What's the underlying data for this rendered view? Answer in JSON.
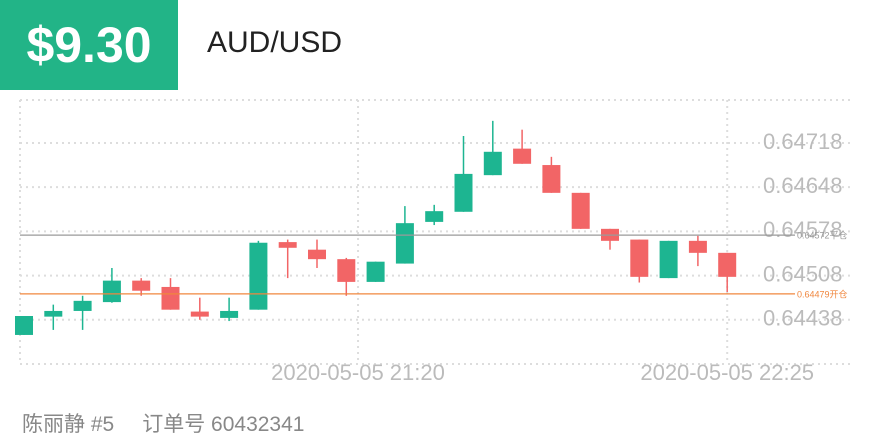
{
  "header": {
    "price": "$9.30",
    "symbol": "AUD/USD"
  },
  "chart_data": {
    "type": "candlestick",
    "open": [
      0.64414,
      0.64443,
      0.64452,
      0.64466,
      0.645,
      0.6449,
      0.64451,
      0.64441,
      0.64454,
      0.64561,
      0.64549,
      0.64534,
      0.64498,
      0.64527,
      0.64593,
      0.64609,
      0.64667,
      0.64709,
      0.64683,
      0.64639,
      0.64582,
      0.64565,
      0.64504,
      0.64563,
      0.64544
    ],
    "high": [
      0.64444,
      0.64462,
      0.64476,
      0.6452,
      0.64504,
      0.64504,
      0.64473,
      0.64473,
      0.64563,
      0.64565,
      0.64565,
      0.64536,
      0.6453,
      0.64618,
      0.6462,
      0.64729,
      0.64753,
      0.64739,
      0.64696,
      0.64639,
      0.64582,
      0.64565,
      0.64563,
      0.64571,
      0.64544
    ],
    "low": [
      0.64414,
      0.64422,
      0.64422,
      0.64465,
      0.64476,
      0.64454,
      0.64438,
      0.64436,
      0.64454,
      0.64504,
      0.6452,
      0.64476,
      0.64498,
      0.64527,
      0.64588,
      0.64609,
      0.64667,
      0.64685,
      0.64639,
      0.64582,
      0.64549,
      0.64497,
      0.64504,
      0.64523,
      0.64482
    ],
    "close": [
      0.64444,
      0.64452,
      0.64468,
      0.645,
      0.64484,
      0.64454,
      0.64443,
      0.64452,
      0.6456,
      0.64552,
      0.64534,
      0.64498,
      0.6453,
      0.64591,
      0.6461,
      0.64669,
      0.64704,
      0.64685,
      0.64639,
      0.64582,
      0.64563,
      0.64506,
      0.64563,
      0.64544,
      0.64506
    ],
    "up_color": "#1db591",
    "down_color": "#f26566",
    "xlim": [
      -0.14,
      24.8
    ],
    "xticks": [
      {
        "value": 11.4,
        "label": "2020-05-05 21:20"
      },
      {
        "value": 24,
        "label": "2020-05-05 22:25"
      }
    ],
    "ylim": [
      0.64368,
      0.64786
    ],
    "yticks": [
      0.64438,
      0.64508,
      0.64578,
      0.64648,
      0.64718
    ],
    "grid": true,
    "lines": [
      {
        "value": 0.64572,
        "label": "0.64572平仓",
        "color": "#9a9a9a"
      },
      {
        "value": 0.64479,
        "label": "0.64479开仓",
        "color": "#f0873f"
      }
    ]
  },
  "footer": {
    "name": "陈丽静 #5",
    "order": "订单号 60432341"
  }
}
